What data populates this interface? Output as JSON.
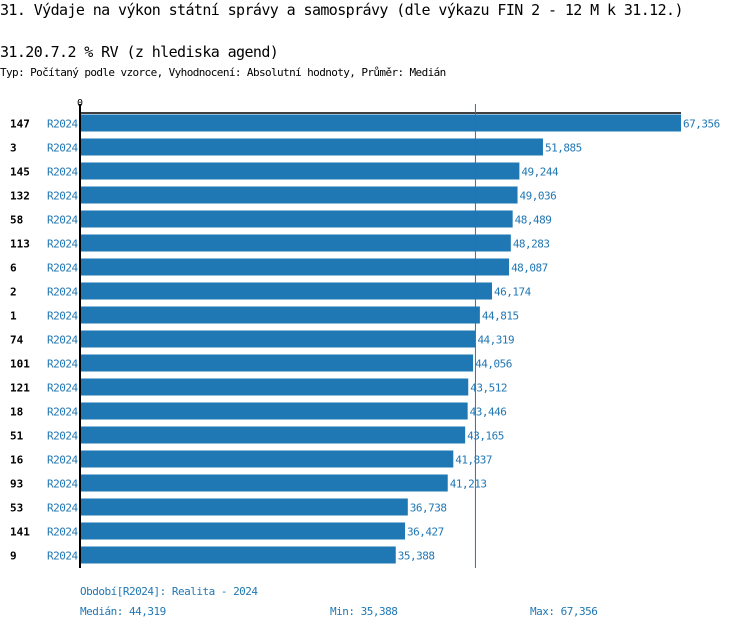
{
  "title": "31. Výdaje na výkon státní správy a samosprávy (dle výkazu FIN 2 - 12 M k 31.12.)",
  "subtitle": "31.20.7.2 % RV (z hlediska agend)",
  "info": "Typ: Počítaný podle vzorce, Vyhodnocení: Absolutní hodnoty, Průměr: Medián",
  "colors": {
    "bar": "#1f77b4",
    "text_accent": "#1f77b4"
  },
  "chart_data": {
    "type": "bar",
    "orientation": "horizontal",
    "axis_tick_label": "0",
    "series_label": "R2024",
    "categories": [
      "147",
      "3",
      "145",
      "132",
      "58",
      "113",
      "6",
      "2",
      "1",
      "74",
      "101",
      "121",
      "18",
      "51",
      "16",
      "93",
      "53",
      "141",
      "9"
    ],
    "values": [
      67356,
      51885,
      49244,
      49036,
      48489,
      48283,
      48087,
      46174,
      44815,
      44319,
      44056,
      43512,
      43446,
      43165,
      41837,
      41213,
      36738,
      36427,
      35388
    ],
    "value_labels": [
      "67,356",
      "51,885",
      "49,244",
      "49,036",
      "48,489",
      "48,283",
      "48,087",
      "46,174",
      "44,815",
      "44,319",
      "44,056",
      "43,512",
      "43,446",
      "43,165",
      "41,837",
      "41,213",
      "36,738",
      "36,427",
      "35,388"
    ],
    "median": 44319,
    "xlim": [
      0,
      67356
    ]
  },
  "footer": {
    "period": "Období[R2024]: Realita - 2024",
    "median": "Medián: 44,319",
    "min": "Min: 35,388",
    "max": "Max: 67,356"
  }
}
